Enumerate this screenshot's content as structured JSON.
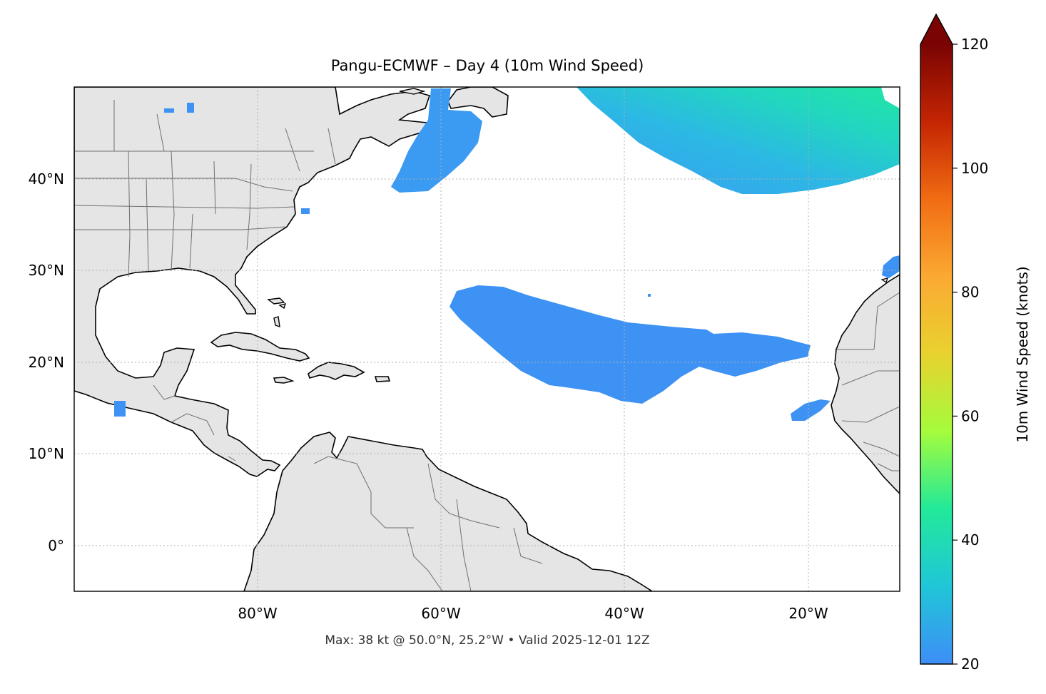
{
  "title": "Pangu-ECMWF – Day 4 (10m Wind Speed)",
  "footer": "Max: 38 kt @ 50.0°N, 25.2°W • Valid 2025-12-01 12Z",
  "colorbar": {
    "label": "10m Wind Speed (knots)",
    "min": 20,
    "max": 120,
    "extend": "max",
    "ticks": [
      "20",
      "40",
      "60",
      "80",
      "100",
      "120"
    ],
    "stops": [
      "#3e8ef7",
      "#20c6d8",
      "#22e99a",
      "#a4fc3c",
      "#e8d22f",
      "#fba932",
      "#f16c13",
      "#c42503",
      "#7a0403"
    ]
  },
  "axes": {
    "lon_range": [
      -100,
      -10
    ],
    "lat_range": [
      -5,
      50
    ],
    "lon_ticks": [
      "80°W",
      "60°W",
      "40°W",
      "20°W"
    ],
    "lat_ticks": [
      "0°",
      "10°N",
      "20°N",
      "30°N",
      "40°N"
    ],
    "grid": true
  },
  "colors": {
    "land": "#e5e5e5",
    "ocean": "#ffffff",
    "coastline": "#000000",
    "borders": "#707070",
    "gridline": "#b0b0b0"
  }
}
